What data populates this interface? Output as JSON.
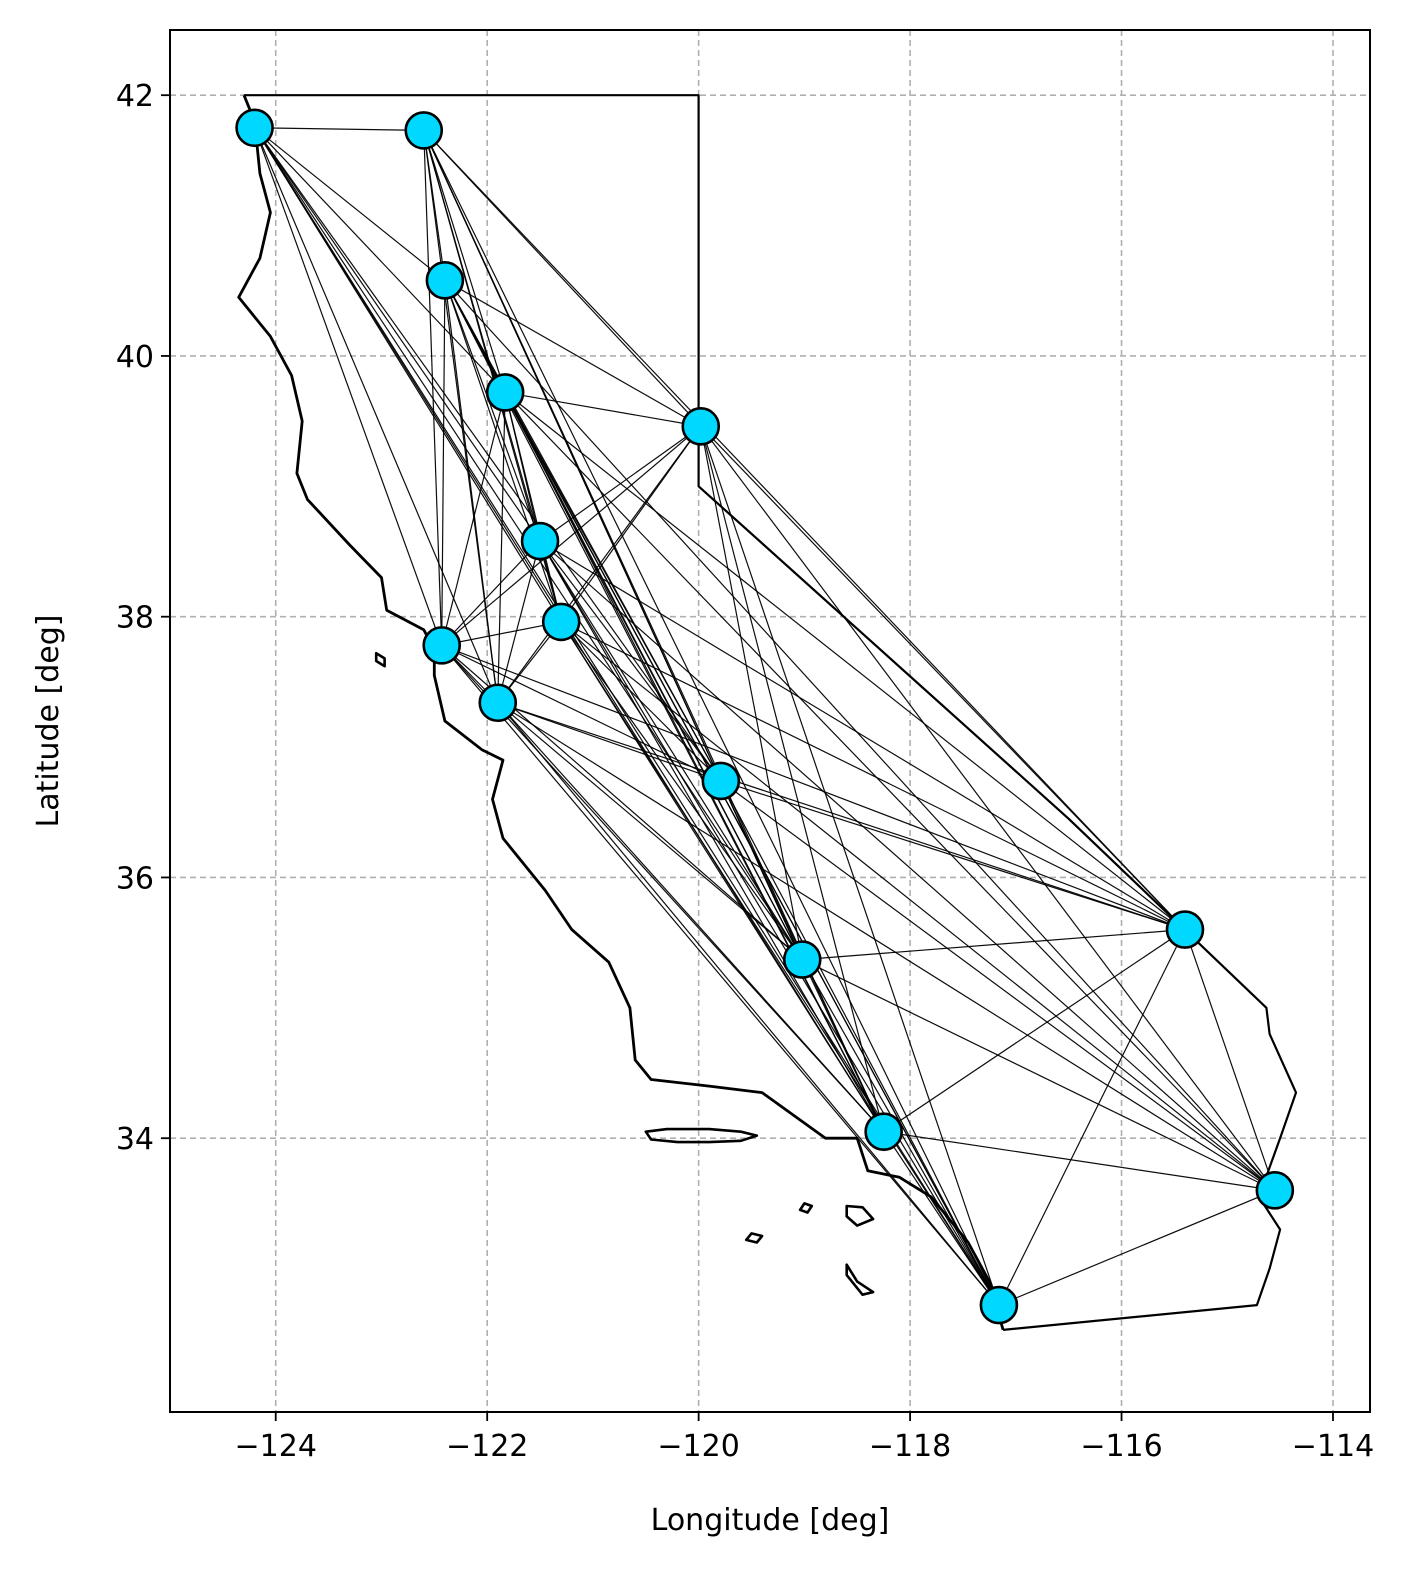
{
  "chart_data": {
    "type": "scatter",
    "title": "",
    "xlabel": "Longitude [deg]",
    "ylabel": "Latitude [deg]",
    "xlim": [
      -125,
      -113.65
    ],
    "ylim": [
      31.9,
      42.5
    ],
    "xticks": [
      -124,
      -122,
      -120,
      -118,
      -116,
      -114
    ],
    "yticks": [
      34,
      36,
      38,
      40,
      42
    ],
    "xtick_labels": [
      "−124",
      "−122",
      "−120",
      "−118",
      "−116",
      "−114"
    ],
    "ytick_labels": [
      "34",
      "36",
      "38",
      "40",
      "42"
    ],
    "grid": true,
    "grid_style": "dashed",
    "marker_color": "#00d8ff",
    "marker_edge_color": "#000000",
    "line_color": "#000000",
    "nodes": [
      {
        "lon": -124.2,
        "lat": 41.75
      },
      {
        "lon": -122.6,
        "lat": 41.73
      },
      {
        "lon": -122.4,
        "lat": 40.58
      },
      {
        "lon": -121.83,
        "lat": 39.72
      },
      {
        "lon": -119.98,
        "lat": 39.46
      },
      {
        "lon": -121.5,
        "lat": 38.58
      },
      {
        "lon": -121.3,
        "lat": 37.96
      },
      {
        "lon": -122.43,
        "lat": 37.78
      },
      {
        "lon": -121.9,
        "lat": 37.34
      },
      {
        "lon": -119.79,
        "lat": 36.74
      },
      {
        "lon": -119.02,
        "lat": 35.37
      },
      {
        "lon": -115.4,
        "lat": 35.6
      },
      {
        "lon": -118.25,
        "lat": 34.05
      },
      {
        "lon": -114.55,
        "lat": 33.6
      },
      {
        "lon": -117.16,
        "lat": 32.72
      }
    ],
    "edges": [
      [
        0,
        1
      ],
      [
        0,
        2
      ],
      [
        0,
        3
      ],
      [
        0,
        5
      ],
      [
        0,
        6
      ],
      [
        0,
        7
      ],
      [
        0,
        8
      ],
      [
        0,
        9
      ],
      [
        0,
        10
      ],
      [
        0,
        12
      ],
      [
        0,
        14
      ],
      [
        1,
        2
      ],
      [
        1,
        3
      ],
      [
        1,
        4
      ],
      [
        1,
        5
      ],
      [
        1,
        6
      ],
      [
        1,
        7
      ],
      [
        1,
        8
      ],
      [
        1,
        9
      ],
      [
        1,
        10
      ],
      [
        1,
        11
      ],
      [
        1,
        12
      ],
      [
        1,
        14
      ],
      [
        2,
        3
      ],
      [
        2,
        4
      ],
      [
        2,
        5
      ],
      [
        2,
        6
      ],
      [
        2,
        7
      ],
      [
        2,
        8
      ],
      [
        2,
        9
      ],
      [
        2,
        10
      ],
      [
        2,
        12
      ],
      [
        2,
        13
      ],
      [
        2,
        14
      ],
      [
        3,
        4
      ],
      [
        3,
        5
      ],
      [
        3,
        6
      ],
      [
        3,
        7
      ],
      [
        3,
        8
      ],
      [
        3,
        9
      ],
      [
        3,
        10
      ],
      [
        3,
        11
      ],
      [
        3,
        12
      ],
      [
        3,
        13
      ],
      [
        3,
        14
      ],
      [
        4,
        5
      ],
      [
        4,
        6
      ],
      [
        4,
        7
      ],
      [
        4,
        8
      ],
      [
        4,
        10
      ],
      [
        4,
        11
      ],
      [
        4,
        12
      ],
      [
        4,
        13
      ],
      [
        4,
        14
      ],
      [
        5,
        6
      ],
      [
        5,
        7
      ],
      [
        5,
        8
      ],
      [
        5,
        9
      ],
      [
        5,
        10
      ],
      [
        5,
        11
      ],
      [
        5,
        12
      ],
      [
        5,
        13
      ],
      [
        5,
        14
      ],
      [
        6,
        7
      ],
      [
        6,
        8
      ],
      [
        6,
        9
      ],
      [
        6,
        10
      ],
      [
        6,
        11
      ],
      [
        6,
        12
      ],
      [
        6,
        13
      ],
      [
        6,
        14
      ],
      [
        7,
        8
      ],
      [
        7,
        9
      ],
      [
        7,
        10
      ],
      [
        7,
        11
      ],
      [
        7,
        12
      ],
      [
        7,
        14
      ],
      [
        8,
        9
      ],
      [
        8,
        10
      ],
      [
        8,
        11
      ],
      [
        8,
        12
      ],
      [
        8,
        13
      ],
      [
        8,
        14
      ],
      [
        9,
        10
      ],
      [
        9,
        11
      ],
      [
        9,
        12
      ],
      [
        9,
        13
      ],
      [
        9,
        14
      ],
      [
        10,
        11
      ],
      [
        10,
        12
      ],
      [
        10,
        13
      ],
      [
        10,
        14
      ],
      [
        11,
        12
      ],
      [
        11,
        13
      ],
      [
        11,
        14
      ],
      [
        12,
        13
      ],
      [
        12,
        14
      ],
      [
        13,
        14
      ]
    ],
    "coastline": [
      [
        -124.3,
        42.0
      ],
      [
        -124.2,
        41.8
      ],
      [
        -124.15,
        41.4
      ],
      [
        -124.05,
        41.1
      ],
      [
        -124.15,
        40.75
      ],
      [
        -124.35,
        40.45
      ],
      [
        -124.05,
        40.15
      ],
      [
        -123.85,
        39.85
      ],
      [
        -123.75,
        39.5
      ],
      [
        -123.8,
        39.1
      ],
      [
        -123.7,
        38.9
      ],
      [
        -123.3,
        38.55
      ],
      [
        -123.0,
        38.3
      ],
      [
        -122.95,
        38.05
      ],
      [
        -122.6,
        37.9
      ],
      [
        -122.5,
        37.75
      ],
      [
        -122.5,
        37.55
      ],
      [
        -122.4,
        37.2
      ],
      [
        -122.05,
        36.98
      ],
      [
        -121.85,
        36.9
      ],
      [
        -121.95,
        36.6
      ],
      [
        -121.85,
        36.3
      ],
      [
        -121.45,
        35.9
      ],
      [
        -121.2,
        35.6
      ],
      [
        -120.85,
        35.35
      ],
      [
        -120.65,
        35.0
      ],
      [
        -120.6,
        34.6
      ],
      [
        -120.45,
        34.45
      ],
      [
        -119.9,
        34.4
      ],
      [
        -119.4,
        34.35
      ],
      [
        -118.8,
        34.0
      ],
      [
        -118.5,
        34.0
      ],
      [
        -118.4,
        33.75
      ],
      [
        -118.1,
        33.7
      ],
      [
        -117.8,
        33.55
      ],
      [
        -117.45,
        33.2
      ],
      [
        -117.25,
        32.9
      ],
      [
        -117.12,
        32.53
      ]
    ],
    "border": [
      [
        -117.12,
        32.53
      ],
      [
        -114.72,
        32.72
      ],
      [
        -114.6,
        33.0
      ],
      [
        -114.5,
        33.3
      ],
      [
        -114.7,
        33.55
      ],
      [
        -114.5,
        34.0
      ],
      [
        -114.35,
        34.35
      ],
      [
        -114.6,
        34.8
      ],
      [
        -114.63,
        35.0
      ],
      [
        -116.5,
        36.45
      ],
      [
        -120.0,
        39.0
      ],
      [
        -120.0,
        42.0
      ],
      [
        -124.3,
        42.0
      ]
    ],
    "islands": [
      [
        [
          -120.5,
          34.05
        ],
        [
          -120.3,
          34.07
        ],
        [
          -119.9,
          34.07
        ],
        [
          -119.6,
          34.05
        ],
        [
          -119.45,
          34.02
        ],
        [
          -119.6,
          33.98
        ],
        [
          -119.9,
          33.97
        ],
        [
          -120.2,
          33.97
        ],
        [
          -120.45,
          33.99
        ],
        [
          -120.5,
          34.05
        ]
      ],
      [
        [
          -118.6,
          33.48
        ],
        [
          -118.45,
          33.47
        ],
        [
          -118.35,
          33.38
        ],
        [
          -118.5,
          33.33
        ],
        [
          -118.6,
          33.4
        ],
        [
          -118.6,
          33.48
        ]
      ],
      [
        [
          -118.6,
          33.03
        ],
        [
          -118.5,
          32.9
        ],
        [
          -118.35,
          32.82
        ],
        [
          -118.45,
          32.8
        ],
        [
          -118.6,
          32.95
        ],
        [
          -118.6,
          33.03
        ]
      ],
      [
        [
          -119.5,
          33.27
        ],
        [
          -119.4,
          33.25
        ],
        [
          -119.45,
          33.2
        ],
        [
          -119.55,
          33.22
        ],
        [
          -119.5,
          33.27
        ]
      ],
      [
        [
          -119.0,
          33.5
        ],
        [
          -118.93,
          33.48
        ],
        [
          -118.97,
          33.43
        ],
        [
          -119.04,
          33.45
        ],
        [
          -119.0,
          33.5
        ]
      ],
      [
        [
          -123.05,
          37.72
        ],
        [
          -122.97,
          37.68
        ],
        [
          -122.97,
          37.62
        ],
        [
          -123.05,
          37.66
        ],
        [
          -123.05,
          37.72
        ]
      ]
    ]
  }
}
